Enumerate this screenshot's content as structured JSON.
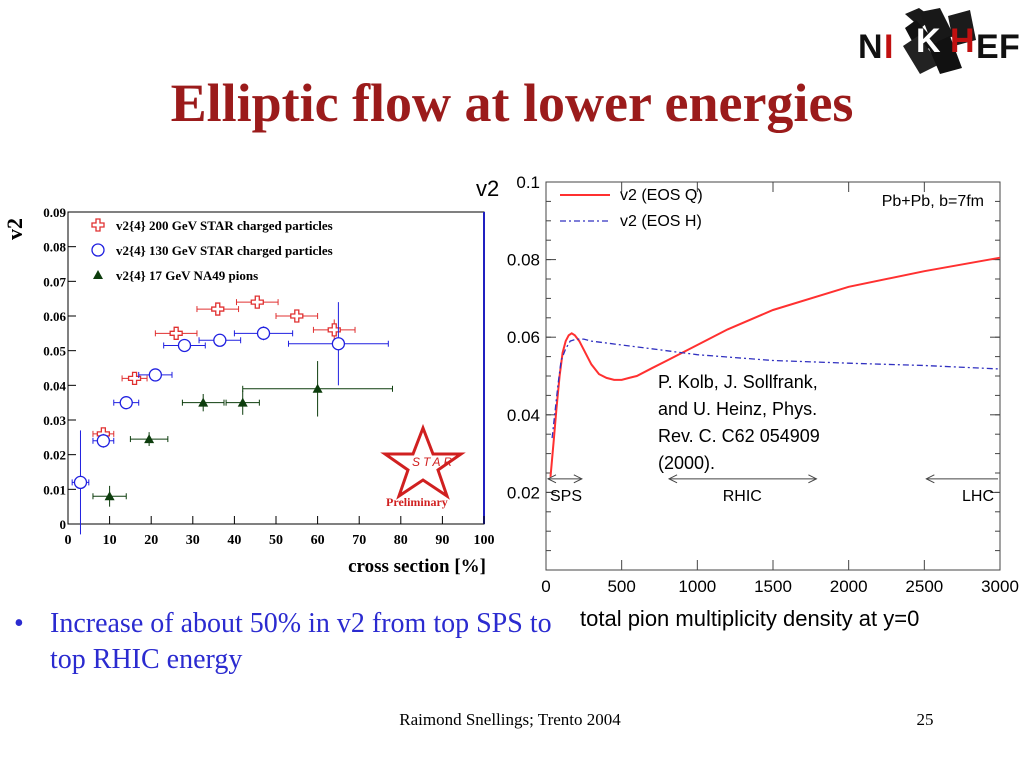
{
  "slide": {
    "title": "Elliptic flow at lower energies",
    "logo_text": [
      "N",
      "I",
      "K",
      "H",
      "E",
      "F"
    ],
    "bullet": "Increase of about 50% in v2 from top SPS to top RHIC energy",
    "footer": "Raimond Snellings; Trento 2004",
    "page_number": "25",
    "citation": [
      "P. Kolb, J. Sollfrank,",
      "and U. Heinz, Phys.",
      "Rev. C.  C62 054909",
      "(2000)."
    ]
  },
  "chart_data": [
    {
      "type": "scatter",
      "xlabel": "cross section [%]",
      "ylabel": "v2",
      "xlim": [
        0,
        100
      ],
      "ylim": [
        0,
        0.09
      ],
      "x_ticks": [
        0,
        10,
        20,
        30,
        40,
        50,
        60,
        70,
        80,
        90,
        100
      ],
      "y_ticks": [
        0,
        0.01,
        0.02,
        0.03,
        0.04,
        0.05,
        0.06,
        0.07,
        0.08,
        0.09
      ],
      "x_tick_labels": [
        "0",
        "10",
        "20",
        "30",
        "40",
        "50",
        "60",
        "70",
        "80",
        "90",
        "100"
      ],
      "y_tick_labels": [
        "0",
        "0.01",
        "0.02",
        "0.03",
        "0.04",
        "0.05",
        "0.06",
        "0.07",
        "0.08",
        "0.09"
      ],
      "legend_position": "top-left",
      "annotation": "Preliminary",
      "logo": "STAR",
      "series": [
        {
          "name": "v2{4} 200 GeV STAR charged particles",
          "marker": "open-cross",
          "color": "#e03030",
          "points": [
            {
              "x": 8.5,
              "y": 0.026,
              "xerr": 2.5,
              "yerr": 0.001
            },
            {
              "x": 16,
              "y": 0.042,
              "xerr": 3,
              "yerr": 0.001
            },
            {
              "x": 26,
              "y": 0.055,
              "xerr": 5,
              "yerr": 0.001
            },
            {
              "x": 36,
              "y": 0.062,
              "xerr": 5,
              "yerr": 0.001
            },
            {
              "x": 45.5,
              "y": 0.064,
              "xerr": 5,
              "yerr": 0.001
            },
            {
              "x": 55,
              "y": 0.06,
              "xerr": 5,
              "yerr": 0.001
            },
            {
              "x": 64,
              "y": 0.056,
              "xerr": 5,
              "yerr": 0.003
            }
          ]
        },
        {
          "name": "v2{4} 130 GeV STAR charged particles",
          "marker": "open-circle",
          "color": "#2020e0",
          "points": [
            {
              "x": 3,
              "y": 0.012,
              "xerr": 2,
              "yerr": 0.015
            },
            {
              "x": 8.5,
              "y": 0.024,
              "xerr": 2.5,
              "yerr": 0.002
            },
            {
              "x": 14,
              "y": 0.035,
              "xerr": 3,
              "yerr": 0.001
            },
            {
              "x": 21,
              "y": 0.043,
              "xerr": 4,
              "yerr": 0.001
            },
            {
              "x": 28,
              "y": 0.0515,
              "xerr": 5,
              "yerr": 0.001
            },
            {
              "x": 36.5,
              "y": 0.053,
              "xerr": 5,
              "yerr": 0.001
            },
            {
              "x": 47,
              "y": 0.055,
              "xerr": 7,
              "yerr": 0.002
            },
            {
              "x": 65,
              "y": 0.052,
              "xerr": 12,
              "yerr": 0.012
            }
          ]
        },
        {
          "name": "v2{4} 17 GeV NA49 pions",
          "marker": "filled-triangle",
          "color": "#0d3d0d",
          "points": [
            {
              "x": 10,
              "y": 0.008,
              "xerr": 4,
              "yerr": 0.003
            },
            {
              "x": 19.5,
              "y": 0.0245,
              "xerr": 4.5,
              "yerr": 0.002
            },
            {
              "x": 32.5,
              "y": 0.035,
              "xerr": 5,
              "yerr": 0.0025
            },
            {
              "x": 42,
              "y": 0.035,
              "xerr": 4,
              "yerr": 0.0035
            },
            {
              "x": 60,
              "y": 0.039,
              "xerr": 18,
              "yerr": 0.008
            }
          ]
        }
      ]
    },
    {
      "type": "line",
      "xlabel": "total pion multiplicity density at y=0",
      "ylabel": "v2",
      "xlim": [
        0,
        3000
      ],
      "ylim": [
        0,
        0.1
      ],
      "x_ticks": [
        0,
        500,
        1000,
        1500,
        2000,
        2500,
        3000
      ],
      "y_ticks": [
        0.02,
        0.04,
        0.06,
        0.08,
        0.1
      ],
      "x_tick_labels": [
        "0",
        "500",
        "1000",
        "1500",
        "2000",
        "2500",
        "3000"
      ],
      "y_tick_labels": [
        "0.02",
        "0.04",
        "0.06",
        "0.08",
        "0.1"
      ],
      "annotation": "Pb+Pb, b=7fm",
      "legend_position": "top-left",
      "regions": [
        {
          "label": "SPS",
          "from": 0,
          "to": 250
        },
        {
          "label": "RHIC",
          "from": 800,
          "to": 1800
        },
        {
          "label": "LHC",
          "from": 2500,
          "to": 3000
        }
      ],
      "series": [
        {
          "name": "v2 (EOS Q)",
          "style": "solid",
          "color": "#ff3030",
          "x": [
            30,
            50,
            70,
            90,
            110,
            130,
            150,
            170,
            190,
            220,
            260,
            300,
            350,
            400,
            450,
            500,
            550,
            600,
            700,
            800,
            1000,
            1200,
            1500,
            2000,
            2500,
            3000
          ],
          "y": [
            0.024,
            0.033,
            0.042,
            0.05,
            0.056,
            0.059,
            0.0605,
            0.061,
            0.0605,
            0.059,
            0.056,
            0.053,
            0.0505,
            0.0495,
            0.049,
            0.049,
            0.0495,
            0.05,
            0.052,
            0.054,
            0.058,
            0.062,
            0.067,
            0.073,
            0.077,
            0.0805
          ]
        },
        {
          "name": "v2 (EOS H)",
          "style": "dash-dot",
          "color": "#3030c0",
          "x": [
            40,
            60,
            80,
            100,
            130,
            160,
            200,
            250,
            300,
            400,
            500,
            700,
            1000,
            1500,
            2000,
            2500,
            3000
          ],
          "y": [
            0.034,
            0.041,
            0.048,
            0.054,
            0.057,
            0.059,
            0.0595,
            0.0595,
            0.059,
            0.0585,
            0.058,
            0.057,
            0.0555,
            0.054,
            0.0533,
            0.0527,
            0.0518
          ]
        }
      ]
    }
  ]
}
